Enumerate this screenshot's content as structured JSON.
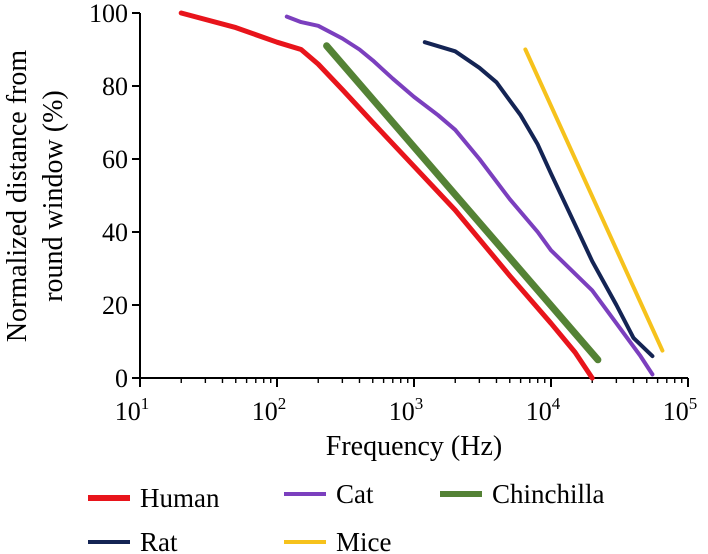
{
  "chart_data": {
    "type": "line",
    "title": "",
    "xlabel": "Frequency (Hz)",
    "ylabel_lines": [
      "Normalized distance from",
      "round window (%)"
    ],
    "x_scale": "log",
    "xlim": [
      10,
      100000
    ],
    "ylim": [
      0,
      100
    ],
    "x_ticks": [
      {
        "value": 10,
        "base": "10",
        "exp": "1"
      },
      {
        "value": 100,
        "base": "10",
        "exp": "2"
      },
      {
        "value": 1000,
        "base": "10",
        "exp": "3"
      },
      {
        "value": 10000,
        "base": "10",
        "exp": "4"
      },
      {
        "value": 100000,
        "base": "10",
        "exp": "5"
      }
    ],
    "y_ticks": [
      0,
      20,
      40,
      60,
      80,
      100
    ],
    "grid": false,
    "legend_position": "bottom",
    "series": [
      {
        "name": "Human",
        "color": "#e8141b",
        "points": [
          [
            20,
            100
          ],
          [
            50,
            96
          ],
          [
            100,
            92
          ],
          [
            150,
            90
          ],
          [
            200,
            86
          ],
          [
            300,
            79
          ],
          [
            500,
            70
          ],
          [
            1000,
            58
          ],
          [
            2000,
            46
          ],
          [
            5000,
            28
          ],
          [
            10000,
            15
          ],
          [
            15000,
            7
          ],
          [
            20000,
            0
          ]
        ]
      },
      {
        "name": "Cat",
        "color": "#7b3fbe",
        "points": [
          [
            118,
            99
          ],
          [
            150,
            97.5
          ],
          [
            200,
            96.5
          ],
          [
            300,
            93
          ],
          [
            400,
            90
          ],
          [
            500,
            87
          ],
          [
            700,
            82
          ],
          [
            1000,
            77
          ],
          [
            1500,
            72
          ],
          [
            2000,
            68
          ],
          [
            3000,
            60
          ],
          [
            5000,
            49
          ],
          [
            8000,
            40
          ],
          [
            10000,
            35
          ],
          [
            20000,
            24
          ],
          [
            30000,
            15
          ],
          [
            45000,
            6
          ],
          [
            55000,
            1
          ]
        ]
      },
      {
        "name": "Chinchilla",
        "color": "#548235",
        "points": [
          [
            230,
            91
          ],
          [
            22000,
            5
          ]
        ]
      },
      {
        "name": "Rat",
        "color": "#142454",
        "points": [
          [
            1200,
            92
          ],
          [
            2000,
            89.5
          ],
          [
            3000,
            85
          ],
          [
            4000,
            81
          ],
          [
            5000,
            76
          ],
          [
            6000,
            72
          ],
          [
            8000,
            64
          ],
          [
            10000,
            56
          ],
          [
            15000,
            42
          ],
          [
            20000,
            32
          ],
          [
            30000,
            20
          ],
          [
            40000,
            11
          ],
          [
            55000,
            6
          ]
        ]
      },
      {
        "name": "Mice",
        "color": "#f6c21c",
        "points": [
          [
            6500,
            90
          ],
          [
            65000,
            7.5
          ]
        ]
      }
    ]
  }
}
